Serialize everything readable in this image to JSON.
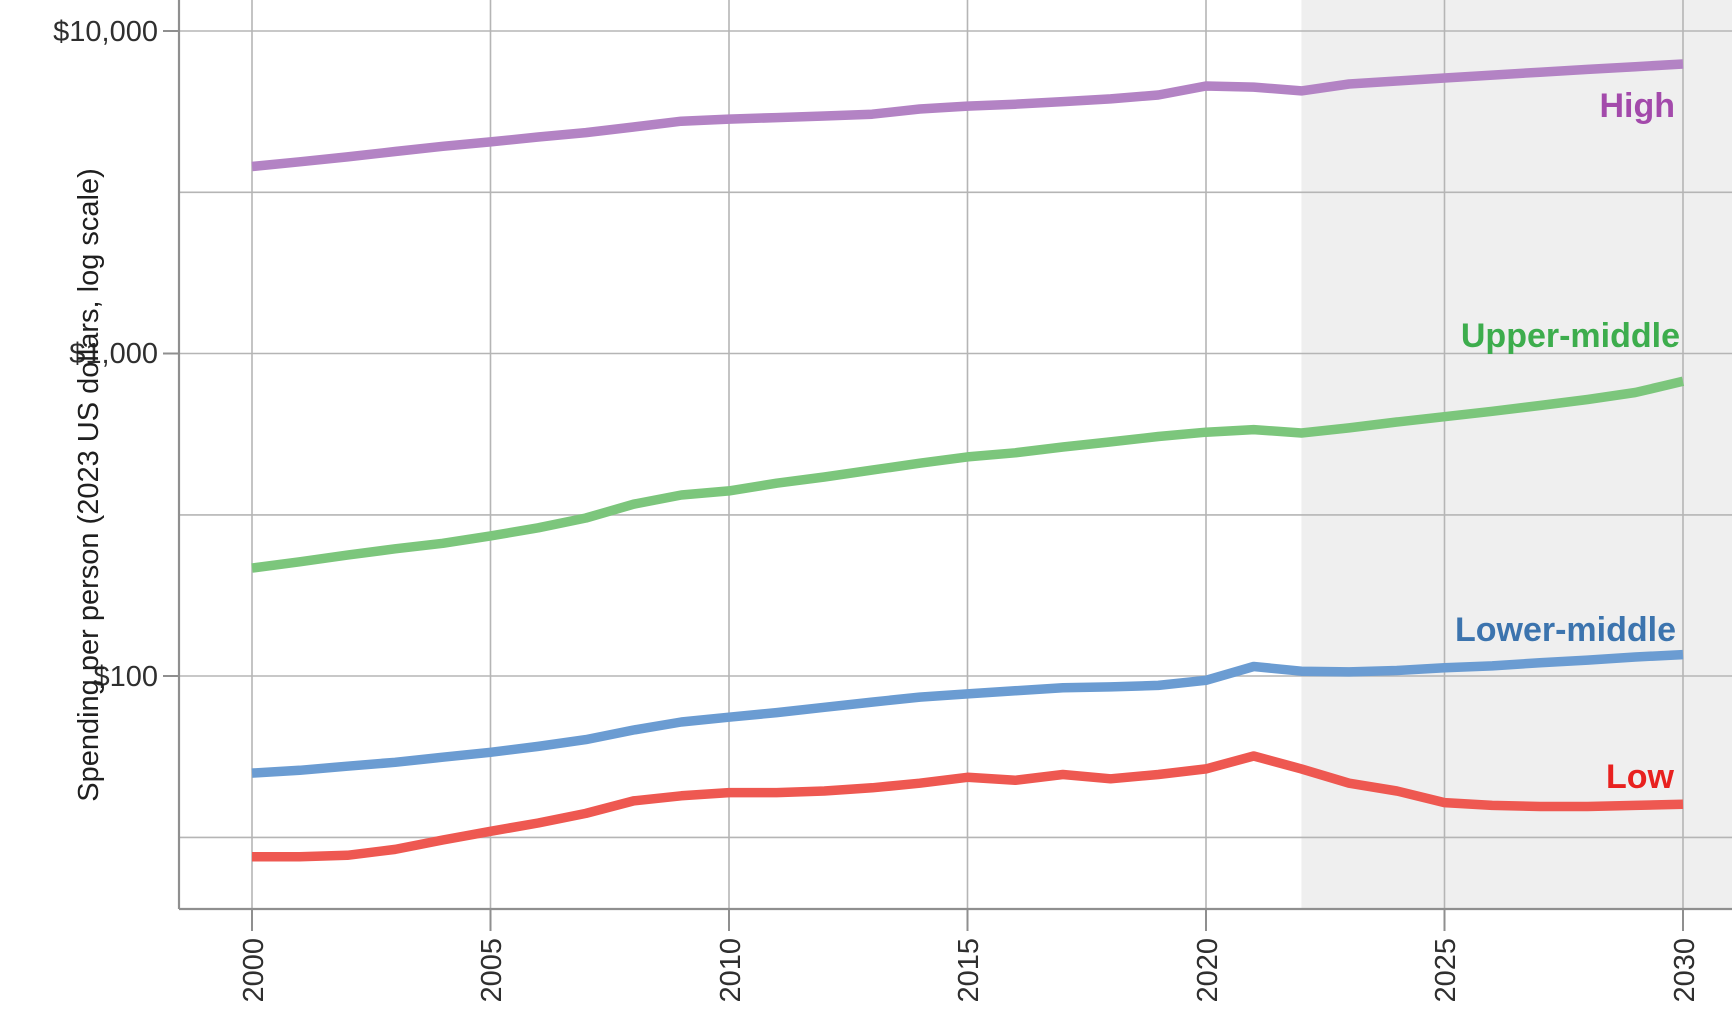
{
  "chart_data": {
    "type": "line",
    "title": "",
    "ylabel": "Spending per person (2023 US dollars, log scale)",
    "xlabel": "",
    "log_scale_y": true,
    "grid": true,
    "legend_position": "inline-right",
    "x_range": [
      2000,
      2030
    ],
    "ylim": [
      20,
      12000
    ],
    "x_ticks": [
      2000,
      2005,
      2010,
      2015,
      2020,
      2025,
      2030
    ],
    "y_tick_labels": [
      "$10,000",
      "$1,000",
      "$100"
    ],
    "y_tick_values": [
      10000,
      1000,
      100
    ],
    "y_minor_gridlines": [
      3162,
      316,
      31.6
    ],
    "projection_band_start": 2022,
    "years": [
      2000,
      2001,
      2002,
      2003,
      2004,
      2005,
      2006,
      2007,
      2008,
      2009,
      2010,
      2011,
      2012,
      2013,
      2014,
      2015,
      2016,
      2017,
      2018,
      2019,
      2020,
      2021,
      2022,
      2023,
      2024,
      2025,
      2026,
      2027,
      2028,
      2029,
      2030
    ],
    "series": [
      {
        "name": "High",
        "color": "#b383c4",
        "label_color": "#a34aab",
        "values": [
          3800,
          3930,
          4070,
          4230,
          4390,
          4530,
          4690,
          4840,
          5040,
          5250,
          5330,
          5390,
          5450,
          5520,
          5730,
          5850,
          5930,
          6040,
          6160,
          6330,
          6750,
          6700,
          6520,
          6850,
          7000,
          7150,
          7300,
          7450,
          7600,
          7750,
          7900
        ]
      },
      {
        "name": "Upper-middle",
        "color": "#7cc67c",
        "label_color": "#3dad4d",
        "values": [
          216,
          226,
          237,
          248,
          258,
          272,
          288,
          309,
          341,
          364,
          375,
          396,
          414,
          435,
          457,
          478,
          492,
          513,
          532,
          553,
          570,
          581,
          567,
          588,
          613,
          637,
          662,
          690,
          720,
          757,
          820
        ]
      },
      {
        "name": "Lower-middle",
        "color": "#6b9cd2",
        "label_color": "#3c74ae",
        "values": [
          50,
          51,
          52.5,
          54,
          56,
          58,
          60.5,
          63.5,
          68,
          72,
          74.5,
          77,
          80,
          83,
          86,
          88,
          90,
          92,
          92.5,
          93.5,
          97,
          107,
          103.5,
          103,
          104,
          106,
          107.5,
          110,
          112,
          114.5,
          116.5
        ]
      },
      {
        "name": "Low",
        "color": "#ee5851",
        "label_color": "#e8211f",
        "values": [
          27.5,
          27.5,
          27.8,
          29,
          31,
          33,
          35,
          37.5,
          41,
          42.5,
          43.5,
          43.5,
          44,
          45,
          46.5,
          48.5,
          47.5,
          49.5,
          48,
          49.5,
          51.5,
          56.5,
          51.5,
          46.5,
          44,
          40.5,
          39.7,
          39.4,
          39.4,
          39.7,
          40
        ]
      }
    ],
    "colors": {
      "projection_band": "#efefef",
      "gridline": "#b5b5b5",
      "axis": "#8f8f8f"
    }
  }
}
